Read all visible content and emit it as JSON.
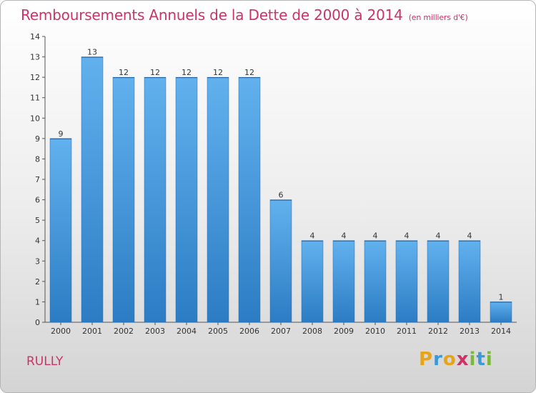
{
  "chart_data": {
    "type": "bar",
    "title": "Remboursements Annuels de la Dette de 2000 à 2014",
    "subtitle": "(en milliers d'€)",
    "categories": [
      "2000",
      "2001",
      "2002",
      "2003",
      "2004",
      "2005",
      "2006",
      "2007",
      "2008",
      "2009",
      "2010",
      "2011",
      "2012",
      "2013",
      "2014"
    ],
    "values": [
      9,
      13,
      12,
      12,
      12,
      12,
      12,
      6,
      4,
      4,
      4,
      4,
      4,
      4,
      1
    ],
    "ylim": [
      0,
      14
    ],
    "yticks": [
      0,
      1,
      2,
      3,
      4,
      5,
      6,
      7,
      8,
      9,
      10,
      11,
      12,
      13,
      14
    ],
    "grid": false,
    "bar_color": "#3d8fd6",
    "title_color": "#cc3366"
  },
  "footer": {
    "commune": "RULLY",
    "logo_letters": [
      "P",
      "r",
      "o",
      "x",
      "i",
      "t",
      "i"
    ],
    "logo_colors": [
      "#e8a317",
      "#3a9ad9",
      "#e8a317",
      "#cc3366",
      "#7ab83a",
      "#3a9ad9",
      "#7ab83a"
    ]
  }
}
